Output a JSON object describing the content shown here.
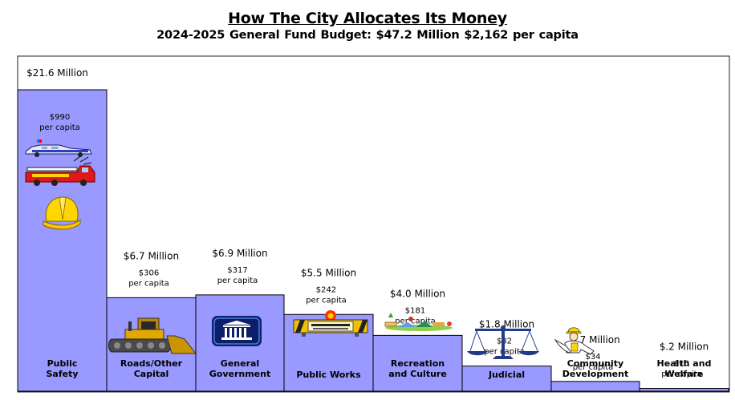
{
  "title": "How The City Allocates Its Money",
  "subtitle": "2024-2025 General Fund Budget:  $47.2  Million  $2,162 per capita",
  "colors": {
    "bar": "#9999ff",
    "frame": "#000000",
    "background": "#ffffff"
  },
  "icons": [
    "police-car-icon",
    "fire-truck-icon",
    "hard-hat-icon",
    "bulldozer-icon",
    "government-building-icon",
    "under-construction-sign-icon",
    "park-scene-icon",
    "scales-of-justice-icon",
    "worker-icon"
  ],
  "chart_data": {
    "type": "bar",
    "unit": "Million",
    "categories": [
      [
        "Public",
        "Safety"
      ],
      [
        "Roads/Other",
        "Capital"
      ],
      [
        "General",
        "Government"
      ],
      [
        "Public Works"
      ],
      [
        "Recreation",
        "and Culture"
      ],
      [
        "Judicial"
      ],
      [
        "Community",
        "Development"
      ],
      [
        "Health and",
        "Welfare"
      ]
    ],
    "values": [
      21.6,
      6.7,
      6.9,
      5.5,
      4.0,
      1.8,
      0.7,
      0.2
    ],
    "amount_labels": [
      "$21.6 Million",
      "$6.7 Million",
      "$6.9 Million",
      "$5.5 Million",
      "$4.0 Million",
      "$1.8 Million",
      "$.7 Million",
      "$.2 Million"
    ],
    "per_capita_values": [
      990,
      306,
      317,
      242,
      181,
      82,
      34,
      10
    ],
    "per_capita_labels": [
      "$990",
      "$306",
      "$317",
      "$242",
      "$181",
      "$82",
      "$34",
      "$10"
    ],
    "per_capita_suffix": "per capita",
    "ylim": [
      0,
      21.6
    ],
    "grid": false,
    "legend": "none"
  }
}
